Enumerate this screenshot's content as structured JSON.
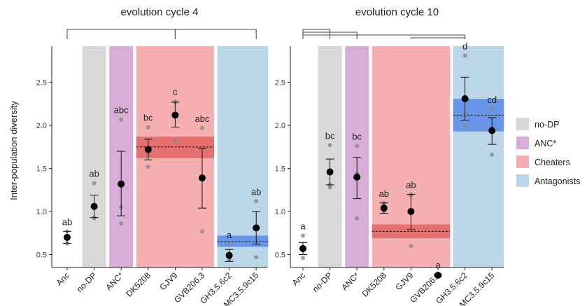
{
  "ylabel": "Inter-population diversity",
  "legend": {
    "items": [
      {
        "label": "no-DP",
        "color": "#d9d9d9"
      },
      {
        "label": "ANC*",
        "color": "#d8aed8"
      },
      {
        "label": "Cheaters",
        "color": "#f6b0b2"
      },
      {
        "label": "Antagonists",
        "color": "#bcd6e9"
      }
    ]
  },
  "chart_data": [
    {
      "type": "scatter",
      "title": "evolution cycle 4",
      "categories": [
        "Anc",
        "no-DP",
        "ANC*",
        "DK5208",
        "GJV9",
        "GVB206.3",
        "GH3.5.6c2",
        "MC3.5.9c15"
      ],
      "ylim": [
        0.35,
        2.92
      ],
      "yticks": [
        0.5,
        1.0,
        1.5,
        2.0,
        2.5
      ],
      "group_backgrounds": [
        {
          "group": "no-DP",
          "categories": [
            "no-DP"
          ],
          "color": "#d9d9d9"
        },
        {
          "group": "ANC*",
          "categories": [
            "ANC*"
          ],
          "color": "#d8aed8"
        },
        {
          "group": "Cheaters",
          "categories": [
            "DK5208",
            "GJV9",
            "GVB206.3"
          ],
          "color": "#f6b0b2"
        },
        {
          "group": "Antagonists",
          "categories": [
            "GH3.5.6c2",
            "MC3.5.9c15"
          ],
          "color": "#bcd6e9"
        }
      ],
      "means": [
        0.7,
        1.06,
        1.32,
        1.72,
        2.12,
        1.39,
        0.49,
        0.81
      ],
      "error_low": [
        0.63,
        0.93,
        0.95,
        1.6,
        1.98,
        1.04,
        0.42,
        0.62
      ],
      "error_high": [
        0.77,
        1.19,
        1.7,
        1.84,
        2.27,
        1.73,
        0.56,
        1.0
      ],
      "points": [
        [
          0.63,
          0.7,
          0.77
        ],
        [
          0.92,
          0.93,
          1.33
        ],
        [
          0.86,
          1.05,
          2.07
        ],
        [
          1.52,
          1.65,
          1.98
        ],
        [
          1.82,
          2.28,
          2.27
        ],
        [
          0.77,
          1.39,
          1.97
        ],
        [
          0.44,
          0.46,
          0.62
        ],
        [
          0.47,
          0.82,
          1.12
        ]
      ],
      "letters": [
        "ab",
        "ab",
        "abc",
        "bc",
        "c",
        "abc",
        "a",
        "ab"
      ],
      "group_bands": [
        {
          "group": "Cheaters",
          "mean": 1.75,
          "low": 1.62,
          "high": 1.87,
          "color": "#e05a5a"
        },
        {
          "group": "Antagonists",
          "mean": 0.65,
          "low": 0.59,
          "high": 0.72,
          "color": "#4d7fe8"
        }
      ],
      "brackets": [
        {
          "from": "Anc",
          "to": "GJV9"
        },
        {
          "from": "GJV9",
          "to": "MC3.5.9c15"
        }
      ]
    },
    {
      "type": "scatter",
      "title": "evolution cycle 10",
      "categories": [
        "Anc",
        "no-DP",
        "ANC*",
        "DK5208",
        "GJV9",
        "GVB206.3",
        "GH3.5.6c2",
        "MC3.5.9c15"
      ],
      "ylim": [
        0.35,
        2.92
      ],
      "yticks": [
        0.5,
        1.0,
        1.5,
        2.0,
        2.5
      ],
      "group_backgrounds": [
        {
          "group": "no-DP",
          "categories": [
            "no-DP"
          ],
          "color": "#d9d9d9"
        },
        {
          "group": "ANC*",
          "categories": [
            "ANC*"
          ],
          "color": "#d8aed8"
        },
        {
          "group": "Cheaters",
          "categories": [
            "DK5208",
            "GJV9",
            "GVB206.3"
          ],
          "color": "#f6b0b2"
        },
        {
          "group": "Antagonists",
          "categories": [
            "GH3.5.6c2",
            "MC3.5.9c15"
          ],
          "color": "#bcd6e9"
        }
      ],
      "means": [
        0.57,
        1.46,
        1.4,
        1.04,
        1.0,
        0.26,
        2.31,
        1.94
      ],
      "error_low": [
        0.5,
        1.31,
        1.15,
        0.98,
        0.79,
        0.25,
        2.06,
        1.78
      ],
      "error_high": [
        0.64,
        1.61,
        1.63,
        1.1,
        1.2,
        0.27,
        2.56,
        2.09
      ],
      "points": [
        [
          0.46,
          0.55,
          0.72
        ],
        [
          1.28,
          1.31,
          1.77
        ],
        [
          0.92,
          1.44,
          1.76
        ],
        [
          1.01,
          1.07,
          1.1
        ],
        [
          0.6,
          1.19,
          1.2
        ],
        [
          0.25,
          0.26,
          0.27
        ],
        [
          1.99,
          2.13,
          2.81
        ],
        [
          1.66,
          1.96,
          2.19
        ]
      ],
      "letters": [
        "a",
        "bc",
        "bc",
        "ab",
        "ab",
        "a",
        "d",
        "cd"
      ],
      "group_bands": [
        {
          "group": "Cheaters",
          "mean": 0.77,
          "low": 0.69,
          "high": 0.85,
          "color": "#e05a5a"
        },
        {
          "group": "Antagonists",
          "mean": 2.12,
          "low": 1.93,
          "high": 2.31,
          "color": "#4d7fe8"
        }
      ],
      "brackets": [
        {
          "from": "Anc",
          "to": "no-DP"
        },
        {
          "from": "Anc",
          "to": "ANC*"
        },
        {
          "from": "Anc",
          "to": "GH3.5.6c2"
        },
        {
          "from": "GJV9",
          "to": "GH3.5.6c2"
        }
      ]
    }
  ]
}
